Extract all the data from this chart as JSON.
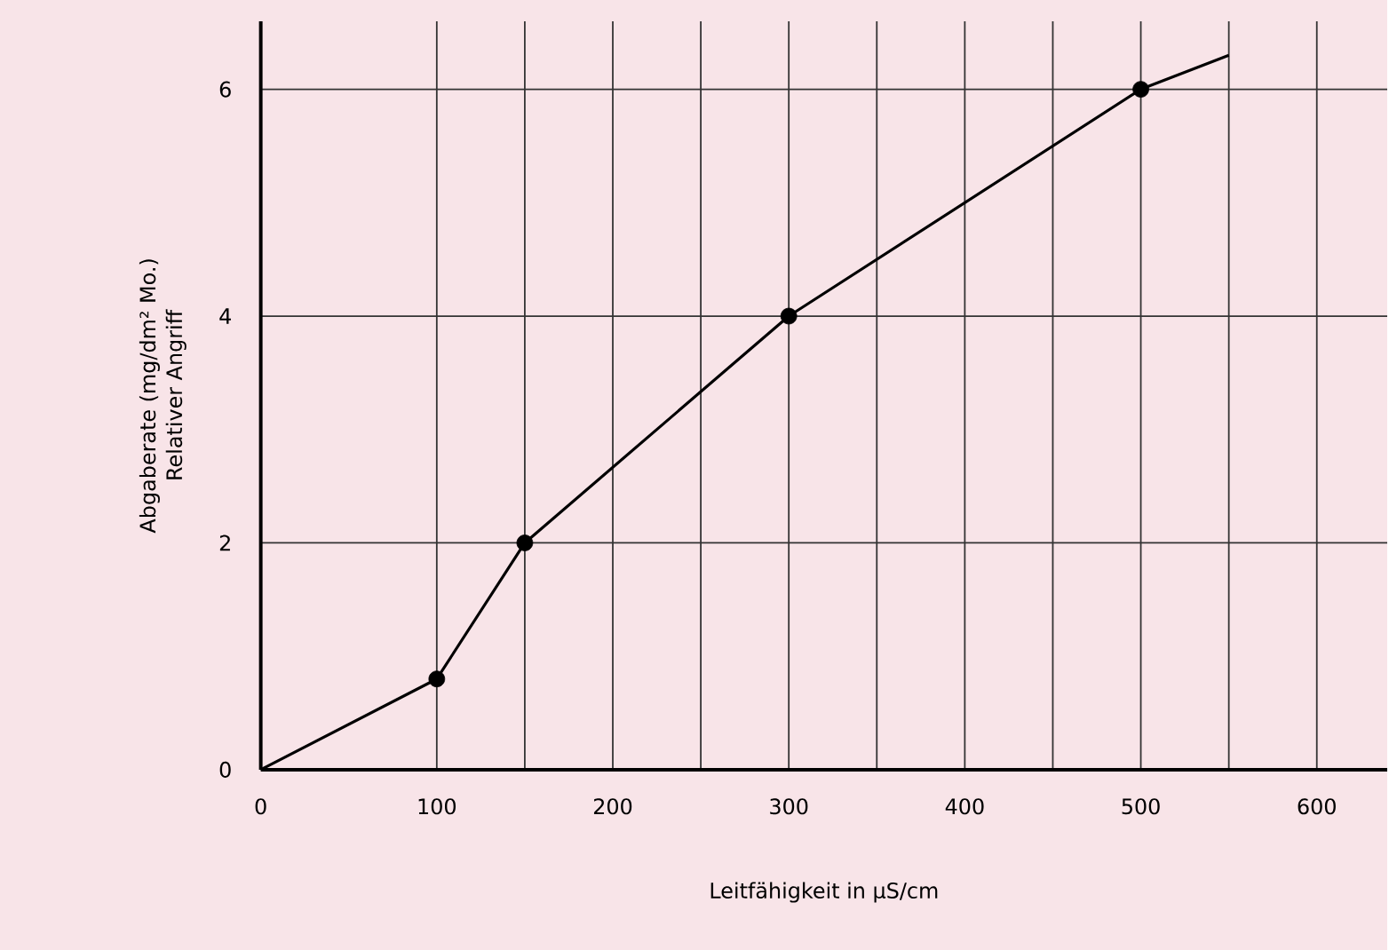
{
  "chart_data": {
    "type": "line",
    "xlabel": "Leitfähigkeit in µS/cm",
    "ylabel": "Abgaberate (mg/dm² Mo.)",
    "annotations": [
      "Relativer Angriff"
    ],
    "xlim": [
      0,
      640
    ],
    "ylim": [
      0,
      6.6
    ],
    "xticks": [
      0,
      100,
      {
        "value": 150,
        "label": null
      },
      200,
      {
        "value": 250,
        "label": null
      },
      300,
      {
        "value": 350,
        "label": null
      },
      400,
      {
        "value": 450,
        "label": null
      },
      500,
      {
        "value": 550,
        "label": null
      },
      600
    ],
    "yticks": [
      0,
      2,
      4,
      6
    ],
    "grid": true,
    "series": [
      {
        "marker": "none",
        "color": "#000000",
        "x": [
          0,
          100,
          150,
          300,
          500,
          550
        ],
        "values": [
          0,
          0.8,
          2,
          4,
          6,
          6.3
        ]
      },
      {
        "type": "scatter",
        "marker": "circle",
        "color": "#000000",
        "x": [
          100,
          150,
          300,
          500
        ],
        "values": [
          0.8,
          2,
          4,
          6
        ]
      }
    ]
  }
}
